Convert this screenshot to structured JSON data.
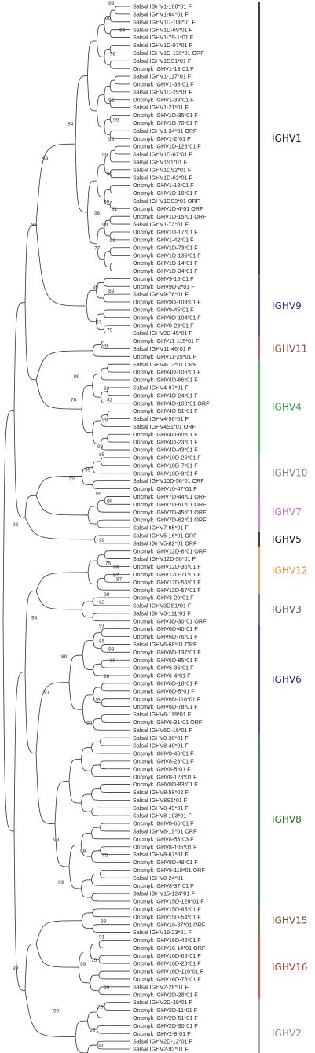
{
  "leaves": [
    "Salsal IGHV1-100*01 F",
    "Salsal IGHV1-64*01 F",
    "Salsal IGHV1D-108*01 F",
    "Salsal IGHV1D-69*01 F",
    "Salsal IGHV1-79-1*01 F",
    "Salsal IGHV1D-97*01 F",
    "Salsal IGHV1D-139*01 ORF",
    "Salsal IGHV1DS1*01 F",
    "Oncmyk IGHV1-13*01 F",
    "Salsal IGHV1-117*01 F",
    "Oncmyk IGHV1-36*01 F",
    "Salsal IGHV1D-25*01 F",
    "Oncmyk IGHV1-39*01 F",
    "Salsal IGHV1-21*01 F",
    "Oncmyk IGHV1D-35*01 F",
    "Oncmyk IGHV1D-70*01 F",
    "Salsal IGHV1-34*01 ORF",
    "Oncmyk IGHV1-2*01 F",
    "Oncmyk IGHV1D-128*01 F",
    "Salsal IGHV1D-87*01 F",
    "Salsal IGHV1S1*01 F",
    "Salsal IGHV1DS2*01 F",
    "Salsal IGHV1D-62*01 F",
    "Oncmyk IGHV1-18*01 F",
    "Oncmyk IGHV1D-16*01 F",
    "Salsal IGHV1DS3*01 ORF",
    "Oncmyk IGHV1D-4*01 ORF",
    "Oncmyk IGHV1D-15*01 ORF",
    "Salsal IGHV1-73*01 F",
    "Oncmyk IGHV1D-17*01 F",
    "Oncmyk IGHV1-42*01 F",
    "Oncmyk IGHV1D-73*01 F",
    "Oncmyk IGHV1D-136*01 F",
    "Oncmyk IGHV1D-14*01 F",
    "Oncmyk IGHV1D-34*01 F",
    "Oncmyk IGHV9-15*01 F",
    "Oncmyk IGHV9D-2*01 F",
    "Salsal IGHV9-76*01 F",
    "Oncmyk IGHV9D-103*01 F",
    "Oncmyk IGHV9-45*01 F",
    "Oncmyk IGHV9D-104*01 F",
    "Oncmyk IGHV9-23*01 F",
    "Salsal IGHV9D-45*01 F",
    "Oncmyk IGHV11-115*01 F",
    "Salsal IGHV11-46*01 F",
    "Oncmyk IGHV11-25*01 F",
    "Salsal IGHV4-13*01 ORF",
    "Oncmyk IGHV4D-106*01 F",
    "Oncmyk IGHV4D-66*01 F",
    "Salsal IGHV4-97*01 F",
    "Oncmyk IGHV4D-24*01 F",
    "Oncmyk IGHV4D-100*01 ORF",
    "Oncmyk IGHV4D-51*01 F",
    "Salsal IGHV4-56*01 F",
    "Salsal IGHV4S1*01 ORF",
    "Oncmyk IGHV4D-60*01 F",
    "Oncmyk IGHV4D-23*01 F",
    "Oncmyk IGHV4D-43*01 F",
    "Oncmyk IGHV10D-26*01 F",
    "Oncmyk IGHV10D-7*01 F",
    "Oncmyk IGHV10D-9*01 F",
    "Salsal IGHV10D-56*01 ORF",
    "Oncmyk IGHV10-47*01 F",
    "Oncmyk IGHV7D-44*01 ORF",
    "Oncmyk IGHV7D-61*01 ORF",
    "Oncmyk IGHV7D-45*01 ORF",
    "Oncmyk IGHV7D-62*01 ORF",
    "Salsal IGHV7-95*01 F",
    "Salsal IGHV5-16*01 ORF",
    "Salsal IGHV5-82*01 ORF",
    "Oncmyk IGHV12D-6*01 ORF",
    "Salsal IGHV12D-50*01 F",
    "Oncmyk IGHV12D-36*01 F",
    "Oncmyk IGHV12D-71*01 F",
    "Oncmyk IGHV12D-56*01 F",
    "Oncmyk IGHV12D-57*01 F",
    "Oncmyk IGHV3-20*01 F",
    "Salsal IGHV3DS1*01 F",
    "Salsal IGHV3-111*01 F",
    "Oncmyk IGHV3D-30*01 ORF",
    "Oncmyk IGHV6D-40*01 F",
    "Oncmyk IGHV6D-76*01 F",
    "Salsal IGHV6-68*01 ORF",
    "Oncmyk IGHV6D-137*01 F",
    "Oncmyk IGHV6D-95*01 F",
    "Oncmyk IGHV6-35*01 F",
    "Oncmyk IGHV6-4*01 F",
    "Oncmyk IGHV6D-18*01 F",
    "Oncmyk IGHV6D-5*01 F",
    "Oncmyk IGHV6D-118*01 F",
    "Oncmyk IGHV6D-78*01 F",
    "Salsal IGHV6-119*01 F",
    "Oncmyk IGHV6-31*01 ORF",
    "Salsal IGHV6D-16*01 F",
    "Salsal IGHV8-30*01 F",
    "Salsal IGHV8-40*01 F",
    "Oncmyk IGHV8-46*01 F",
    "Oncmyk IGHV8-28*01 F",
    "Oncmyk IGHV8-5*01 F",
    "Oncmyk IGHV8-123*01 F",
    "Oncmyk IGHV8D-83*01 F",
    "Salsal IGHV8-58*02 F",
    "Salsal IGHV8S1*01 F",
    "Salsal IGHV8-49*01 F",
    "Salsal IGHV8-103*01 F",
    "Oncmyk IGHV8-66*01 F",
    "Salsal IGHV8-19*01 ORF",
    "Oncmyk IGHV8-53*03 F",
    "Oncmyk IGHV8-105*01 F",
    "Salsal IGHV8-67*01 F",
    "Oncmyk IGHV8D-48*01 F",
    "Oncmyk IGHV8-110*01 ORF",
    "Salsal IGHV8-24*01",
    "Oncmyk IGHV8-37*01 F",
    "Salsal IGHV15-124*01 F",
    "Oncmyk IGHV15D-126*01 F",
    "Oncmyk IGHV15D-85*01 F",
    "Oncmyk IGHV15D-54*01 F",
    "Oncmyk IGHV16-37*01 ORF",
    "Salsal IGHV16-23*01 F",
    "Oncmyk IGHV16D-42*01 F",
    "Oncmyk IGHV16-14*01 ORF",
    "Oncmyk IGHV16D-65*01 F",
    "Oncmyk IGHV16D-23*01 F",
    "Oncmyk IGHV16D-116*01 F",
    "Oncmyk IGHV16D-76*01 F",
    "Salsal IGHV2-28*01 F",
    "Oncmyk IGHV2D-28*01 F",
    "Salsal IGHV2D-39*01 F",
    "Oncmyk IGHV2D-11*01 F",
    "Oncmyk IGHV2D-51*01 F",
    "Oncmyk IGHV2D-30*01 F",
    "Oncmyk IGHV2-8*01 F",
    "Salsal IGHV2D-12*01 F",
    "Salsal IGHV2-92*01 F"
  ],
  "groups": [
    {
      "name": "IGHV1",
      "first": 0,
      "last": 34,
      "color": "#111111"
    },
    {
      "name": "IGHV9",
      "first": 35,
      "last": 42,
      "color": "#2b2b9c"
    },
    {
      "name": "IGHV11",
      "first": 43,
      "last": 45,
      "color": "#8a4a3a"
    },
    {
      "name": "IGHV4",
      "first": 46,
      "last": 57,
      "color": "#2fa14a"
    },
    {
      "name": "IGHV10",
      "first": 58,
      "last": 62,
      "color": "#808080"
    },
    {
      "name": "IGHV7",
      "first": 63,
      "last": 67,
      "color": "#b86dbe"
    },
    {
      "name": "IGHV5",
      "first": 68,
      "last": 69,
      "color": "#111111"
    },
    {
      "name": "IGHV12",
      "first": 70,
      "last": 75,
      "color": "#f08a3a"
    },
    {
      "name": "IGHV3",
      "first": 76,
      "last": 79,
      "color": "#555555"
    },
    {
      "name": "IGHV6",
      "first": 80,
      "last": 93,
      "color": "#24247a"
    },
    {
      "name": "IGHV8",
      "first": 94,
      "last": 115,
      "color": "#1d6b2a"
    },
    {
      "name": "IGHV15",
      "first": 116,
      "last": 119,
      "color": "#6b4a2a"
    },
    {
      "name": "IGHV16",
      "first": 120,
      "last": 127,
      "color": "#c72b2b"
    },
    {
      "name": "IGHV2",
      "first": 128,
      "last": 136,
      "color": "#909090"
    }
  ],
  "support_values": [
    {
      "label": "99",
      "leaf": 0,
      "dx": -28
    },
    {
      "label": "99",
      "leaf": 2,
      "dx": -32
    },
    {
      "label": "99",
      "leaf": 3.5,
      "dx": -14
    },
    {
      "label": "98",
      "leaf": 6.5,
      "dx": -26
    },
    {
      "label": "82",
      "leaf": 12.5,
      "dx": -28
    },
    {
      "label": "99",
      "leaf": 15,
      "dx": -22
    },
    {
      "label": "84",
      "leaf": 15.5,
      "dx": -80
    },
    {
      "label": "99",
      "leaf": 17.5,
      "dx": -28
    },
    {
      "label": "99",
      "leaf": 19.5,
      "dx": -36
    },
    {
      "label": "99",
      "leaf": 22,
      "dx": -30
    },
    {
      "label": "99",
      "leaf": 25.5,
      "dx": -34
    },
    {
      "label": "81",
      "leaf": 26.5,
      "dx": -24
    },
    {
      "label": "98",
      "leaf": 27,
      "dx": -46
    },
    {
      "label": "99",
      "leaf": 28.5,
      "dx": -36
    },
    {
      "label": "99",
      "leaf": 30.5,
      "dx": -26
    },
    {
      "label": "77",
      "leaf": 31.5,
      "dx": -46
    },
    {
      "label": "99",
      "leaf": 20,
      "dx": -112
    },
    {
      "label": "86",
      "leaf": 28.5,
      "dx": -126
    },
    {
      "label": "99",
      "leaf": 36.5,
      "dx": -48
    },
    {
      "label": "89",
      "leaf": 37,
      "dx": -28
    },
    {
      "label": "87",
      "leaf": 41,
      "dx": -44
    },
    {
      "label": "79",
      "leaf": 42,
      "dx": -30
    },
    {
      "label": "99",
      "leaf": 44,
      "dx": -36
    },
    {
      "label": "99",
      "leaf": 48,
      "dx": -72
    },
    {
      "label": "76",
      "leaf": 51,
      "dx": -76
    },
    {
      "label": "99",
      "leaf": 49.5,
      "dx": -34
    },
    {
      "label": "82",
      "leaf": 51,
      "dx": -30
    },
    {
      "label": "99",
      "leaf": 53.5,
      "dx": -36
    },
    {
      "label": "99",
      "leaf": 57,
      "dx": -42
    },
    {
      "label": "85",
      "leaf": 58,
      "dx": -40
    },
    {
      "label": "99",
      "leaf": 60,
      "dx": -58
    },
    {
      "label": "90",
      "leaf": 61,
      "dx": -78
    },
    {
      "label": "99",
      "leaf": 63,
      "dx": -44
    },
    {
      "label": "99",
      "leaf": 64,
      "dx": -30
    },
    {
      "label": "93",
      "leaf": 67,
      "dx": -150
    },
    {
      "label": "99",
      "leaf": 69,
      "dx": -40
    },
    {
      "label": "75",
      "leaf": 72,
      "dx": -32
    },
    {
      "label": "99",
      "leaf": 72.5,
      "dx": -22
    },
    {
      "label": "97",
      "leaf": 73.5,
      "dx": -22
    },
    {
      "label": "87",
      "leaf": 74,
      "dx": -18
    },
    {
      "label": "99",
      "leaf": 76,
      "dx": -34
    },
    {
      "label": "93",
      "leaf": 77,
      "dx": -40
    },
    {
      "label": "94",
      "leaf": 79,
      "dx": -126
    },
    {
      "label": "91",
      "leaf": 80,
      "dx": -40
    },
    {
      "label": "85",
      "leaf": 82,
      "dx": -40
    },
    {
      "label": "99",
      "leaf": 83,
      "dx": -28
    },
    {
      "label": "89",
      "leaf": 84,
      "dx": -88
    },
    {
      "label": "90",
      "leaf": 84.5,
      "dx": -26
    },
    {
      "label": "98",
      "leaf": 86.5,
      "dx": -34
    },
    {
      "label": "97",
      "leaf": 88.5,
      "dx": -110
    },
    {
      "label": "99",
      "leaf": 89.5,
      "dx": -44
    },
    {
      "label": "99",
      "leaf": 92.5,
      "dx": -56
    },
    {
      "label": "99",
      "leaf": 107.5,
      "dx": -98
    },
    {
      "label": "99",
      "leaf": 109,
      "dx": -64
    },
    {
      "label": "75",
      "leaf": 109.5,
      "dx": -36
    },
    {
      "label": "99",
      "leaf": 113,
      "dx": -92
    },
    {
      "label": "99",
      "leaf": 118,
      "dx": -38
    },
    {
      "label": "91",
      "leaf": 120,
      "dx": -40
    },
    {
      "label": "75",
      "leaf": 123,
      "dx": -50
    },
    {
      "label": "99",
      "leaf": 123.5,
      "dx": -64
    },
    {
      "label": "99",
      "leaf": 126.5,
      "dx": -34
    },
    {
      "label": "78",
      "leaf": 129,
      "dx": -42
    },
    {
      "label": "99",
      "leaf": 129.5,
      "dx": -98
    },
    {
      "label": "95",
      "leaf": 132,
      "dx": -52
    },
    {
      "label": "99",
      "leaf": 134,
      "dx": -42
    },
    {
      "label": "99",
      "leaf": 136,
      "dx": -42
    },
    {
      "label": "99",
      "leaf": 124,
      "dx": -150
    }
  ]
}
